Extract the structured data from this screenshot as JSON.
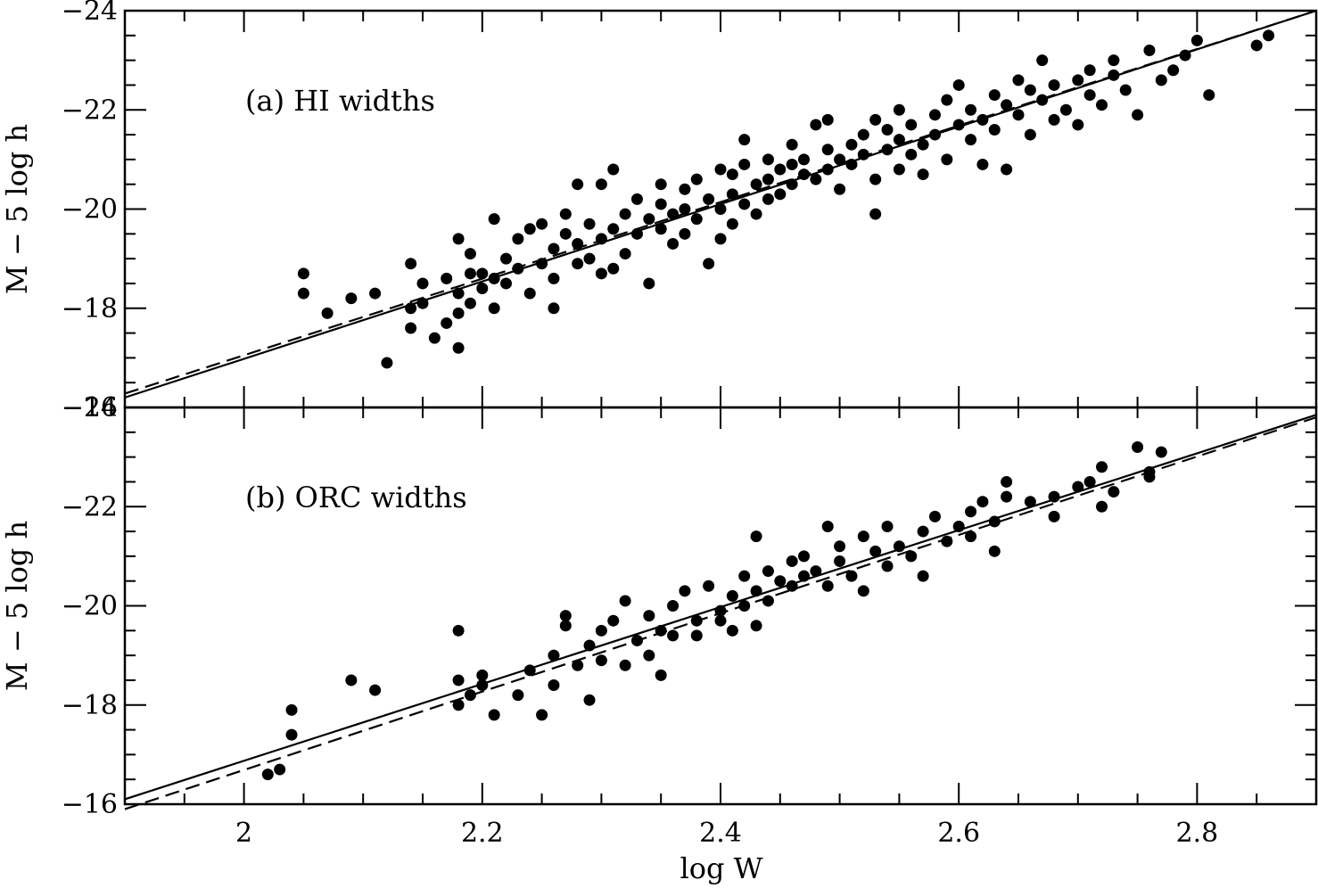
{
  "figure": {
    "xlabel": "log W"
  },
  "chart_data": [
    {
      "type": "scatter",
      "title": "",
      "panel_label": "(a) HI widths",
      "xlabel": "",
      "ylabel": "M − 5 log h",
      "xlim": [
        1.9,
        2.9
      ],
      "ylim": [
        -16,
        -24
      ],
      "y_inverted": true,
      "x_ticks": [
        "2",
        "2.2",
        "2.4",
        "2.6",
        "2.8"
      ],
      "y_ticks": [
        "−24",
        "−22",
        "−20",
        "−18",
        "−16"
      ],
      "grid": false,
      "legend": "none",
      "fit_lines": [
        {
          "style": "solid",
          "points": [
            [
              1.9,
              -16.2
            ],
            [
              2.9,
              -24.0
            ]
          ]
        },
        {
          "style": "dashed",
          "points": [
            [
              1.9,
              -16.28
            ],
            [
              2.9,
              -24.0
            ]
          ]
        }
      ],
      "marker_color": "#000000",
      "points": [
        [
          2.05,
          -18.7
        ],
        [
          2.05,
          -18.3
        ],
        [
          2.07,
          -17.9
        ],
        [
          2.09,
          -18.2
        ],
        [
          2.11,
          -18.3
        ],
        [
          2.12,
          -16.9
        ],
        [
          2.14,
          -18.0
        ],
        [
          2.14,
          -17.6
        ],
        [
          2.14,
          -18.9
        ],
        [
          2.15,
          -18.1
        ],
        [
          2.15,
          -18.5
        ],
        [
          2.16,
          -17.4
        ],
        [
          2.17,
          -17.7
        ],
        [
          2.17,
          -18.6
        ],
        [
          2.18,
          -17.9
        ],
        [
          2.18,
          -18.3
        ],
        [
          2.18,
          -19.4
        ],
        [
          2.18,
          -17.2
        ],
        [
          2.19,
          -18.1
        ],
        [
          2.19,
          -18.7
        ],
        [
          2.19,
          -19.1
        ],
        [
          2.2,
          -18.4
        ],
        [
          2.2,
          -18.7
        ],
        [
          2.21,
          -18.0
        ],
        [
          2.21,
          -18.6
        ],
        [
          2.21,
          -19.8
        ],
        [
          2.22,
          -18.5
        ],
        [
          2.22,
          -19.0
        ],
        [
          2.23,
          -18.8
        ],
        [
          2.23,
          -19.4
        ],
        [
          2.24,
          -19.6
        ],
        [
          2.24,
          -18.3
        ],
        [
          2.25,
          -18.9
        ],
        [
          2.25,
          -19.7
        ],
        [
          2.26,
          -18.6
        ],
        [
          2.26,
          -19.2
        ],
        [
          2.26,
          -18.0
        ],
        [
          2.27,
          -19.5
        ],
        [
          2.27,
          -19.9
        ],
        [
          2.28,
          -18.9
        ],
        [
          2.28,
          -19.3
        ],
        [
          2.28,
          -20.5
        ],
        [
          2.29,
          -19.0
        ],
        [
          2.29,
          -19.7
        ],
        [
          2.3,
          -18.7
        ],
        [
          2.3,
          -19.4
        ],
        [
          2.3,
          -20.5
        ],
        [
          2.31,
          -18.8
        ],
        [
          2.31,
          -19.6
        ],
        [
          2.31,
          -20.8
        ],
        [
          2.32,
          -19.9
        ],
        [
          2.32,
          -19.1
        ],
        [
          2.33,
          -19.5
        ],
        [
          2.33,
          -20.2
        ],
        [
          2.34,
          -19.8
        ],
        [
          2.34,
          -18.5
        ],
        [
          2.35,
          -19.6
        ],
        [
          2.35,
          -20.1
        ],
        [
          2.35,
          -20.5
        ],
        [
          2.36,
          -19.3
        ],
        [
          2.36,
          -19.9
        ],
        [
          2.37,
          -20.0
        ],
        [
          2.37,
          -20.4
        ],
        [
          2.37,
          -19.5
        ],
        [
          2.38,
          -20.6
        ],
        [
          2.38,
          -19.8
        ],
        [
          2.39,
          -20.2
        ],
        [
          2.39,
          -18.9
        ],
        [
          2.4,
          -20.0
        ],
        [
          2.4,
          -20.8
        ],
        [
          2.4,
          -19.4
        ],
        [
          2.41,
          -20.3
        ],
        [
          2.41,
          -20.7
        ],
        [
          2.41,
          -19.7
        ],
        [
          2.42,
          -20.9
        ],
        [
          2.42,
          -20.1
        ],
        [
          2.42,
          -21.4
        ],
        [
          2.43,
          -20.5
        ],
        [
          2.43,
          -19.9
        ],
        [
          2.44,
          -20.6
        ],
        [
          2.44,
          -21.0
        ],
        [
          2.44,
          -20.2
        ],
        [
          2.45,
          -20.8
        ],
        [
          2.45,
          -20.3
        ],
        [
          2.46,
          -20.9
        ],
        [
          2.46,
          -21.3
        ],
        [
          2.46,
          -20.5
        ],
        [
          2.47,
          -21.0
        ],
        [
          2.47,
          -20.7
        ],
        [
          2.48,
          -20.6
        ],
        [
          2.48,
          -21.7
        ],
        [
          2.49,
          -21.2
        ],
        [
          2.49,
          -20.8
        ],
        [
          2.49,
          -21.8
        ],
        [
          2.5,
          -21.0
        ],
        [
          2.5,
          -20.4
        ],
        [
          2.51,
          -21.3
        ],
        [
          2.51,
          -20.9
        ],
        [
          2.52,
          -21.5
        ],
        [
          2.52,
          -21.1
        ],
        [
          2.53,
          -20.6
        ],
        [
          2.53,
          -21.8
        ],
        [
          2.53,
          -19.9
        ],
        [
          2.54,
          -21.2
        ],
        [
          2.54,
          -21.6
        ],
        [
          2.55,
          -20.8
        ],
        [
          2.55,
          -21.4
        ],
        [
          2.55,
          -22.0
        ],
        [
          2.56,
          -21.1
        ],
        [
          2.56,
          -21.7
        ],
        [
          2.57,
          -21.3
        ],
        [
          2.57,
          -20.7
        ],
        [
          2.58,
          -21.9
        ],
        [
          2.58,
          -21.5
        ],
        [
          2.59,
          -22.2
        ],
        [
          2.59,
          -21.0
        ],
        [
          2.6,
          -21.7
        ],
        [
          2.6,
          -22.5
        ],
        [
          2.61,
          -21.4
        ],
        [
          2.61,
          -22.0
        ],
        [
          2.62,
          -21.8
        ],
        [
          2.62,
          -20.9
        ],
        [
          2.63,
          -22.3
        ],
        [
          2.63,
          -21.6
        ],
        [
          2.64,
          -22.1
        ],
        [
          2.64,
          -20.8
        ],
        [
          2.65,
          -22.6
        ],
        [
          2.65,
          -21.9
        ],
        [
          2.66,
          -22.4
        ],
        [
          2.66,
          -21.5
        ],
        [
          2.67,
          -22.2
        ],
        [
          2.67,
          -23.0
        ],
        [
          2.68,
          -22.5
        ],
        [
          2.68,
          -21.8
        ],
        [
          2.69,
          -22.0
        ],
        [
          2.7,
          -22.6
        ],
        [
          2.7,
          -21.7
        ],
        [
          2.71,
          -22.3
        ],
        [
          2.71,
          -22.8
        ],
        [
          2.72,
          -22.1
        ],
        [
          2.73,
          -22.7
        ],
        [
          2.73,
          -23.0
        ],
        [
          2.74,
          -22.4
        ],
        [
          2.75,
          -21.9
        ],
        [
          2.76,
          -23.2
        ],
        [
          2.77,
          -22.6
        ],
        [
          2.78,
          -22.8
        ],
        [
          2.79,
          -23.1
        ],
        [
          2.8,
          -23.4
        ],
        [
          2.81,
          -22.3
        ],
        [
          2.85,
          -23.3
        ],
        [
          2.86,
          -23.5
        ]
      ]
    },
    {
      "type": "scatter",
      "title": "",
      "panel_label": "(b) ORC widths",
      "xlabel": "log W",
      "ylabel": "M − 5 log h",
      "xlim": [
        1.9,
        2.9
      ],
      "ylim": [
        -16,
        -24
      ],
      "y_inverted": true,
      "x_ticks": [
        "2",
        "2.2",
        "2.4",
        "2.6",
        "2.8"
      ],
      "y_ticks": [
        "−24",
        "−22",
        "−20",
        "−18",
        "−16"
      ],
      "grid": false,
      "legend": "none",
      "fit_lines": [
        {
          "style": "solid",
          "points": [
            [
              1.9,
              -16.1
            ],
            [
              2.9,
              -23.85
            ]
          ]
        },
        {
          "style": "dashed",
          "points": [
            [
              1.9,
              -15.9
            ],
            [
              2.9,
              -23.8
            ]
          ]
        }
      ],
      "marker_color": "#000000",
      "points": [
        [
          2.02,
          -16.6
        ],
        [
          2.03,
          -16.7
        ],
        [
          2.04,
          -17.9
        ],
        [
          2.04,
          -17.4
        ],
        [
          2.09,
          -18.5
        ],
        [
          2.11,
          -18.3
        ],
        [
          2.18,
          -18.0
        ],
        [
          2.18,
          -18.5
        ],
        [
          2.18,
          -19.5
        ],
        [
          2.19,
          -18.2
        ],
        [
          2.2,
          -18.4
        ],
        [
          2.2,
          -18.6
        ],
        [
          2.21,
          -17.8
        ],
        [
          2.23,
          -18.2
        ],
        [
          2.24,
          -18.7
        ],
        [
          2.25,
          -17.8
        ],
        [
          2.26,
          -18.4
        ],
        [
          2.26,
          -19.0
        ],
        [
          2.27,
          -19.6
        ],
        [
          2.27,
          -19.8
        ],
        [
          2.28,
          -18.8
        ],
        [
          2.29,
          -19.2
        ],
        [
          2.29,
          -18.1
        ],
        [
          2.3,
          -19.5
        ],
        [
          2.3,
          -18.9
        ],
        [
          2.31,
          -19.7
        ],
        [
          2.32,
          -20.1
        ],
        [
          2.32,
          -18.8
        ],
        [
          2.33,
          -19.3
        ],
        [
          2.34,
          -19.8
        ],
        [
          2.34,
          -19.0
        ],
        [
          2.35,
          -19.5
        ],
        [
          2.35,
          -18.6
        ],
        [
          2.36,
          -20.0
        ],
        [
          2.36,
          -19.4
        ],
        [
          2.37,
          -20.3
        ],
        [
          2.38,
          -19.7
        ],
        [
          2.38,
          -19.4
        ],
        [
          2.39,
          -20.4
        ],
        [
          2.4,
          -19.9
        ],
        [
          2.4,
          -19.7
        ],
        [
          2.41,
          -20.2
        ],
        [
          2.41,
          -19.5
        ],
        [
          2.42,
          -20.6
        ],
        [
          2.42,
          -20.0
        ],
        [
          2.43,
          -19.6
        ],
        [
          2.43,
          -21.4
        ],
        [
          2.43,
          -20.3
        ],
        [
          2.44,
          -20.7
        ],
        [
          2.44,
          -20.1
        ],
        [
          2.45,
          -20.5
        ],
        [
          2.46,
          -20.9
        ],
        [
          2.46,
          -20.4
        ],
        [
          2.47,
          -21.0
        ],
        [
          2.47,
          -20.6
        ],
        [
          2.48,
          -20.7
        ],
        [
          2.49,
          -21.6
        ],
        [
          2.49,
          -20.4
        ],
        [
          2.5,
          -20.9
        ],
        [
          2.5,
          -21.2
        ],
        [
          2.51,
          -20.6
        ],
        [
          2.52,
          -21.4
        ],
        [
          2.52,
          -20.3
        ],
        [
          2.53,
          -21.1
        ],
        [
          2.54,
          -20.8
        ],
        [
          2.54,
          -21.6
        ],
        [
          2.55,
          -21.2
        ],
        [
          2.56,
          -21.0
        ],
        [
          2.57,
          -21.5
        ],
        [
          2.57,
          -20.6
        ],
        [
          2.58,
          -21.8
        ],
        [
          2.59,
          -21.3
        ],
        [
          2.6,
          -21.6
        ],
        [
          2.61,
          -21.9
        ],
        [
          2.61,
          -21.4
        ],
        [
          2.62,
          -22.1
        ],
        [
          2.63,
          -21.7
        ],
        [
          2.63,
          -21.1
        ],
        [
          2.64,
          -22.2
        ],
        [
          2.64,
          -22.5
        ],
        [
          2.66,
          -22.1
        ],
        [
          2.68,
          -22.2
        ],
        [
          2.68,
          -21.8
        ],
        [
          2.7,
          -22.4
        ],
        [
          2.71,
          -22.5
        ],
        [
          2.72,
          -22.0
        ],
        [
          2.72,
          -22.8
        ],
        [
          2.73,
          -22.3
        ],
        [
          2.75,
          -23.2
        ],
        [
          2.76,
          -22.7
        ],
        [
          2.76,
          -22.6
        ],
        [
          2.77,
          -23.1
        ]
      ]
    }
  ]
}
